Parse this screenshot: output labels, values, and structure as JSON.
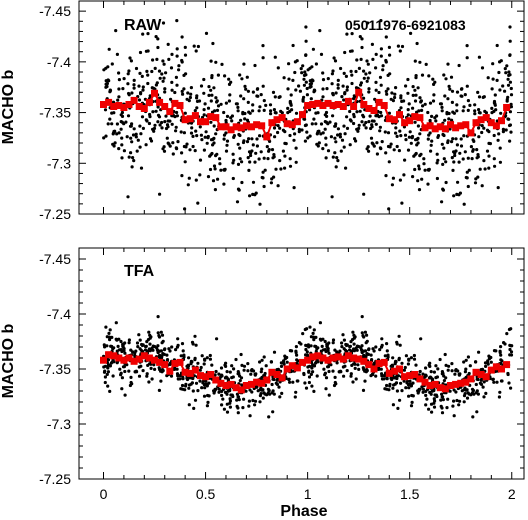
{
  "chart_data": [
    {
      "type": "scatter",
      "panel_label": "RAW",
      "object_id": "05011976-6921083",
      "xlabel": "",
      "ylabel": "MACHO b",
      "xlim": [
        -0.12,
        2.06
      ],
      "ylim": [
        -7.25,
        -7.46
      ],
      "y_inverted": true,
      "x_ticks": [
        0,
        0.5,
        1,
        1.5,
        2
      ],
      "x_tick_labels": [],
      "y_ticks": [
        -7.45,
        -7.4,
        -7.35,
        -7.3,
        -7.25
      ],
      "y_tick_labels": [
        "-7.45",
        "-7.4",
        "-7.35",
        "-7.3",
        "-7.25"
      ],
      "series": [
        {
          "style": "black-dots",
          "points_per_cycle": 600,
          "scatter_sigma": 0.035,
          "model_phase": [
            0.0,
            0.1,
            0.2,
            0.25,
            0.3,
            0.4,
            0.5,
            0.6,
            0.7,
            0.8,
            0.9,
            1.0
          ],
          "model_value": [
            -7.358,
            -7.355,
            -7.36,
            -7.37,
            -7.358,
            -7.345,
            -7.34,
            -7.335,
            -7.335,
            -7.33,
            -7.34,
            -7.358
          ]
        },
        {
          "style": "red-binned",
          "x": [
            0.0,
            0.025,
            0.05,
            0.075,
            0.1,
            0.125,
            0.15,
            0.175,
            0.2,
            0.225,
            0.25,
            0.275,
            0.3,
            0.325,
            0.35,
            0.375,
            0.4,
            0.425,
            0.45,
            0.475,
            0.5,
            0.525,
            0.55,
            0.575,
            0.6,
            0.625,
            0.65,
            0.675,
            0.7,
            0.725,
            0.75,
            0.775,
            0.8,
            0.825,
            0.85,
            0.875,
            0.9,
            0.925,
            0.95,
            0.975,
            1.0,
            1.025,
            1.05,
            1.075,
            1.1,
            1.125,
            1.15,
            1.175,
            1.2,
            1.225,
            1.25,
            1.275,
            1.3,
            1.325,
            1.35,
            1.375,
            1.4,
            1.425,
            1.45,
            1.475,
            1.5,
            1.525,
            1.55,
            1.575,
            1.6,
            1.625,
            1.65,
            1.675,
            1.7,
            1.725,
            1.75,
            1.775,
            1.8,
            1.825,
            1.85,
            1.875,
            1.9,
            1.925,
            1.95,
            1.975
          ],
          "y": [
            -7.358,
            -7.36,
            -7.356,
            -7.357,
            -7.355,
            -7.358,
            -7.362,
            -7.356,
            -7.354,
            -7.36,
            -7.369,
            -7.36,
            -7.356,
            -7.351,
            -7.359,
            -7.357,
            -7.343,
            -7.344,
            -7.347,
            -7.341,
            -7.341,
            -7.346,
            -7.345,
            -7.336,
            -7.336,
            -7.333,
            -7.336,
            -7.335,
            -7.337,
            -7.336,
            -7.338,
            -7.337,
            -7.326,
            -7.34,
            -7.343,
            -7.345,
            -7.339,
            -7.338,
            -7.341,
            -7.348,
            -7.357,
            -7.358,
            -7.359,
            -7.357,
            -7.359,
            -7.357,
            -7.358,
            -7.356,
            -7.361,
            -7.356,
            -7.37,
            -7.358,
            -7.354,
            -7.352,
            -7.36,
            -7.357,
            -7.344,
            -7.343,
            -7.348,
            -7.34,
            -7.342,
            -7.346,
            -7.345,
            -7.335,
            -7.337,
            -7.334,
            -7.336,
            -7.334,
            -7.338,
            -7.335,
            -7.337,
            -7.338,
            -7.33,
            -7.34,
            -7.343,
            -7.345,
            -7.34,
            -7.337,
            -7.342,
            -7.355
          ]
        }
      ]
    },
    {
      "type": "scatter",
      "panel_label": "TFA",
      "object_id": "",
      "xlabel": "Phase",
      "ylabel": "MACHO b",
      "xlim": [
        -0.12,
        2.06
      ],
      "ylim": [
        -7.25,
        -7.46
      ],
      "y_inverted": true,
      "x_ticks": [
        0,
        0.5,
        1,
        1.5,
        2
      ],
      "x_tick_labels": [
        "0",
        "0.5",
        "1",
        "1.5",
        "2"
      ],
      "y_ticks": [
        -7.45,
        -7.4,
        -7.35,
        -7.3,
        -7.25
      ],
      "y_tick_labels": [
        "-7.45",
        "-7.4",
        "-7.35",
        "-7.3",
        "-7.25"
      ],
      "series": [
        {
          "style": "black-dots",
          "points_per_cycle": 600,
          "scatter_sigma": 0.012,
          "model_phase": [
            0.0,
            0.1,
            0.2,
            0.25,
            0.3,
            0.4,
            0.5,
            0.6,
            0.7,
            0.8,
            0.9,
            1.0
          ],
          "model_value": [
            -7.36,
            -7.36,
            -7.362,
            -7.36,
            -7.355,
            -7.35,
            -7.342,
            -7.335,
            -7.335,
            -7.34,
            -7.345,
            -7.36
          ]
        },
        {
          "style": "red-binned",
          "x": [
            0.0,
            0.025,
            0.05,
            0.075,
            0.1,
            0.125,
            0.15,
            0.175,
            0.2,
            0.225,
            0.25,
            0.275,
            0.3,
            0.325,
            0.35,
            0.375,
            0.4,
            0.425,
            0.45,
            0.475,
            0.5,
            0.525,
            0.55,
            0.575,
            0.6,
            0.625,
            0.65,
            0.675,
            0.7,
            0.725,
            0.75,
            0.775,
            0.8,
            0.825,
            0.85,
            0.875,
            0.9,
            0.925,
            0.95,
            0.975,
            1.0,
            1.025,
            1.05,
            1.075,
            1.1,
            1.125,
            1.15,
            1.175,
            1.2,
            1.225,
            1.25,
            1.275,
            1.3,
            1.325,
            1.35,
            1.375,
            1.4,
            1.425,
            1.45,
            1.475,
            1.5,
            1.525,
            1.55,
            1.575,
            1.6,
            1.625,
            1.65,
            1.675,
            1.7,
            1.725,
            1.75,
            1.775,
            1.8,
            1.825,
            1.85,
            1.875,
            1.9,
            1.925,
            1.95,
            1.975
          ],
          "y": [
            -7.358,
            -7.363,
            -7.362,
            -7.36,
            -7.358,
            -7.36,
            -7.357,
            -7.359,
            -7.362,
            -7.36,
            -7.358,
            -7.356,
            -7.354,
            -7.348,
            -7.355,
            -7.356,
            -7.347,
            -7.346,
            -7.349,
            -7.344,
            -7.343,
            -7.345,
            -7.34,
            -7.337,
            -7.335,
            -7.336,
            -7.333,
            -7.331,
            -7.335,
            -7.336,
            -7.338,
            -7.337,
            -7.34,
            -7.347,
            -7.345,
            -7.342,
            -7.35,
            -7.353,
            -7.351,
            -7.356,
            -7.358,
            -7.361,
            -7.362,
            -7.36,
            -7.358,
            -7.36,
            -7.361,
            -7.359,
            -7.362,
            -7.36,
            -7.359,
            -7.357,
            -7.354,
            -7.35,
            -7.355,
            -7.356,
            -7.346,
            -7.348,
            -7.35,
            -7.343,
            -7.344,
            -7.345,
            -7.341,
            -7.338,
            -7.335,
            -7.336,
            -7.333,
            -7.332,
            -7.335,
            -7.336,
            -7.337,
            -7.338,
            -7.341,
            -7.347,
            -7.345,
            -7.343,
            -7.349,
            -7.352,
            -7.35,
            -7.354
          ]
        }
      ]
    }
  ]
}
